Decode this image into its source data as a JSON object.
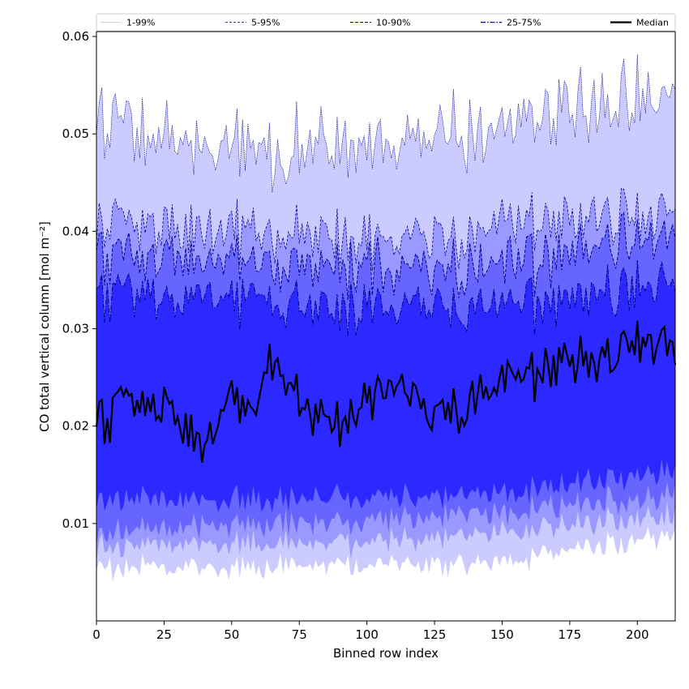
{
  "chart_data": {
    "type": "area",
    "title": "",
    "xlabel": "Binned row index",
    "ylabel": "CO total vertical column [mol m⁻²]",
    "xlim": [
      0,
      214
    ],
    "ylim": [
      0.0,
      0.0605
    ],
    "x_ticks": [
      0,
      25,
      50,
      75,
      100,
      125,
      150,
      175,
      200
    ],
    "y_ticks": [
      0.01,
      0.02,
      0.03,
      0.04,
      0.05,
      0.06
    ],
    "x_tick_labels": [
      "0",
      "25",
      "50",
      "75",
      "100",
      "125",
      "150",
      "175",
      "200"
    ],
    "y_tick_labels": [
      "0.01",
      "0.02",
      "0.03",
      "0.04",
      "0.05",
      "0.06"
    ],
    "grid": false,
    "legend": {
      "placement": "top",
      "entries": [
        "1-99%",
        "5-95%",
        "10-90%",
        "25-75%",
        "Median"
      ]
    },
    "colors": {
      "band_1_99": "#cccbff",
      "band_5_95": "#9a99ff",
      "band_10_90": "#6665ff",
      "band_25_75": "#2b29ff",
      "median": "#000000",
      "band_edge": "#00008b"
    },
    "series_shape": [
      {
        "name": "Median",
        "x": [
          0,
          10,
          25,
          39,
          50,
          58,
          66,
          75,
          90,
          100,
          112,
          125,
          135,
          150,
          160,
          175,
          185,
          199,
          214
        ],
        "values": [
          0.02,
          0.022,
          0.022,
          0.018,
          0.023,
          0.021,
          0.028,
          0.022,
          0.02,
          0.023,
          0.024,
          0.021,
          0.022,
          0.024,
          0.025,
          0.027,
          0.026,
          0.029,
          0.028
        ]
      },
      {
        "name": "25-75% lower",
        "x": [
          0,
          50,
          100,
          150,
          214
        ],
        "values": [
          0.0125,
          0.0125,
          0.0125,
          0.013,
          0.0155
        ]
      },
      {
        "name": "25-75% upper",
        "x": [
          0,
          50,
          100,
          150,
          214
        ],
        "values": [
          0.033,
          0.033,
          0.032,
          0.032,
          0.035
        ]
      },
      {
        "name": "10-90% lower",
        "x": [
          0,
          50,
          100,
          150,
          214
        ],
        "values": [
          0.009,
          0.01,
          0.01,
          0.011,
          0.013
        ]
      },
      {
        "name": "10-90% upper",
        "x": [
          0,
          50,
          100,
          150,
          214
        ],
        "values": [
          0.037,
          0.037,
          0.036,
          0.036,
          0.04
        ]
      },
      {
        "name": "5-95% lower",
        "x": [
          0,
          50,
          100,
          150,
          214
        ],
        "values": [
          0.0075,
          0.008,
          0.008,
          0.009,
          0.011
        ]
      },
      {
        "name": "5-95% upper",
        "x": [
          0,
          50,
          100,
          150,
          214
        ],
        "values": [
          0.04,
          0.04,
          0.039,
          0.04,
          0.042
        ]
      },
      {
        "name": "1-99% lower",
        "x": [
          0,
          50,
          100,
          150,
          214
        ],
        "values": [
          0.0055,
          0.0055,
          0.0055,
          0.006,
          0.009
        ]
      },
      {
        "name": "1-99% upper",
        "x": [
          0,
          50,
          100,
          150,
          214
        ],
        "values": [
          0.05,
          0.048,
          0.049,
          0.05,
          0.055
        ]
      }
    ]
  }
}
